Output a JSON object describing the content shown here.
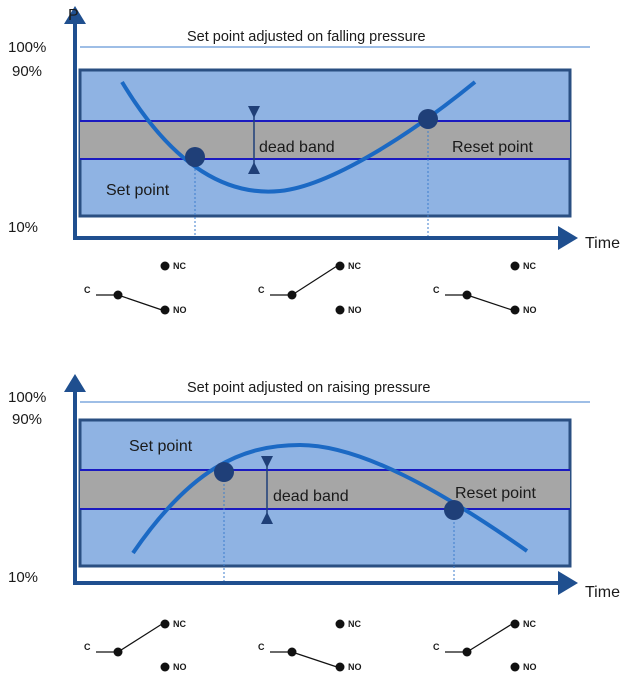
{
  "colors": {
    "axis": "#1f4f8f",
    "band_fill": "#8fb3e3",
    "band_border": "#2a4f82",
    "deadband_fill": "#a6a6a6",
    "threshold_line": "#1a1ac0",
    "curve": "#1b69c4",
    "marker": "#1f3f78",
    "thin_line": "#3c7dcc"
  },
  "panels": [
    {
      "title": "Set point adjusted on falling pressure",
      "y_axis_label": "P",
      "x_axis_label": "Time",
      "pct_100": "100%",
      "pct_90": "90%",
      "pct_10": "10%",
      "dead_band_label": "dead band",
      "set_point_label": "Set point",
      "reset_point_label": "Reset point",
      "switches": [
        {
          "c": "C",
          "nc": "NC",
          "no": "NO",
          "state": "NO"
        },
        {
          "c": "C",
          "nc": "NC",
          "no": "NO",
          "state": "NC"
        },
        {
          "c": "C",
          "nc": "NC",
          "no": "NO",
          "state": "NO"
        }
      ]
    },
    {
      "title": "Set point adjusted on raising pressure",
      "y_axis_label": "",
      "x_axis_label": "Time",
      "pct_100": "100%",
      "pct_90": "90%",
      "pct_10": "10%",
      "dead_band_label": "dead band",
      "set_point_label": "Set point",
      "reset_point_label": "Reset point",
      "switches": [
        {
          "c": "C",
          "nc": "NC",
          "no": "NO",
          "state": "NC"
        },
        {
          "c": "C",
          "nc": "NC",
          "no": "NO",
          "state": "NO"
        },
        {
          "c": "C",
          "nc": "NC",
          "no": "NO",
          "state": "NC"
        }
      ]
    }
  ]
}
